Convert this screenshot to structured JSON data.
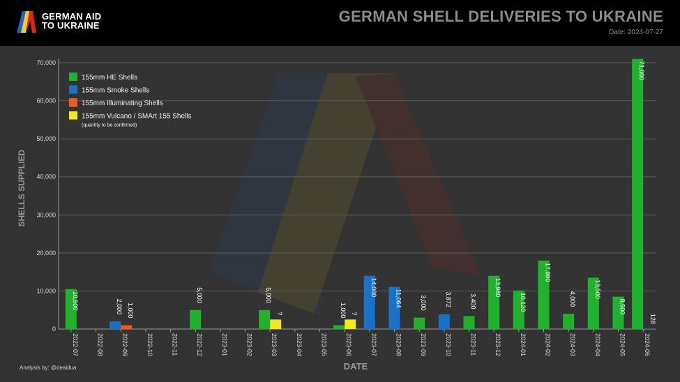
{
  "header": {
    "logo_line1": "GERMAN AID",
    "logo_line2": "TO UKRAINE",
    "title": "GERMAN SHELL DELIVERIES TO UKRAINE",
    "date": "Date: 2024-07-27"
  },
  "footer": {
    "credit": "Analysis by: @deaidua"
  },
  "colors": {
    "he": "#22b12e",
    "smoke": "#1a72c7",
    "illum": "#ef5a24",
    "vulcano": "#f4e81a",
    "grid": "#6a6a6a",
    "background": "#333333",
    "header": "#000000"
  },
  "chart_data": {
    "type": "bar",
    "xlabel": "DATE",
    "ylabel": "SHELLS SUPPLIED",
    "ylim": [
      0,
      70000
    ],
    "yticks": [
      "0",
      "10,000",
      "20,000",
      "30,000",
      "40,000",
      "50,000",
      "60,000",
      "70,000"
    ],
    "grid": true,
    "legend_position": "top-left",
    "legend_note": "(quantity to be confirmed)",
    "categories": [
      "2022-07",
      "2022-08",
      "2022-09",
      "2022-10",
      "2022-11",
      "2022-12",
      "2023-01",
      "2023-02",
      "2023-03",
      "2023-04",
      "2023-05",
      "2023-06",
      "2023-07",
      "2023-08",
      "2023-09",
      "2023-10",
      "2023-11",
      "2023-12",
      "2024-01",
      "2024-02",
      "2024-03",
      "2024-04",
      "2024-05",
      "2024-06"
    ],
    "series": [
      {
        "key": "he",
        "name": "155mm HE Shells",
        "color": "#22b12e",
        "values": [
          10500,
          0,
          0,
          0,
          0,
          5000,
          0,
          0,
          5000,
          0,
          0,
          1000,
          0,
          0,
          3000,
          0,
          3400,
          13980,
          10120,
          17990,
          4000,
          13500,
          8500,
          71000
        ],
        "labels": [
          "10,500",
          "",
          "",
          "",
          "",
          "5,000",
          "",
          "",
          "5,000",
          "",
          "",
          "1,000",
          "",
          "",
          "3,000",
          "",
          "3,400",
          "13,980",
          "10,120",
          "17,990",
          "4,000",
          "13,500",
          "8,500",
          "71,000"
        ]
      },
      {
        "key": "smoke",
        "name": "155mm Smoke Shells",
        "color": "#1a72c7",
        "values": [
          0,
          0,
          2000,
          0,
          0,
          0,
          0,
          0,
          0,
          0,
          0,
          0,
          14000,
          11064,
          0,
          3872,
          0,
          0,
          0,
          0,
          0,
          0,
          0,
          128
        ],
        "labels": [
          "",
          "",
          "2,000",
          "",
          "",
          "",
          "",
          "",
          "",
          "",
          "",
          "",
          "14,000",
          "11,064",
          "",
          "3,872",
          "",
          "",
          "",
          "",
          "",
          "",
          "",
          "128"
        ]
      },
      {
        "key": "illum",
        "name": "155mm Illuminating Shells",
        "color": "#ef5a24",
        "values": [
          0,
          0,
          1000,
          0,
          0,
          0,
          0,
          0,
          0,
          0,
          0,
          0,
          0,
          0,
          0,
          0,
          0,
          0,
          0,
          0,
          0,
          0,
          0,
          0
        ],
        "labels": [
          "",
          "",
          "1,000",
          "",
          "",
          "",
          "",
          "",
          "",
          "",
          "",
          "",
          "",
          "",
          "",
          "",
          "",
          "",
          "",
          "",
          "",
          "",
          "",
          ""
        ]
      },
      {
        "key": "vulcano",
        "name": "155mm Vulcano / SMArt 155 Shells",
        "color": "#f4e81a",
        "values": [
          0,
          0,
          0,
          0,
          0,
          0,
          0,
          0,
          2500,
          0,
          0,
          2500,
          0,
          0,
          0,
          0,
          0,
          0,
          0,
          0,
          0,
          0,
          0,
          0
        ],
        "labels": [
          "",
          "",
          "",
          "",
          "",
          "",
          "",
          "",
          "?",
          "",
          "",
          "?",
          "",
          "",
          "",
          "",
          "",
          "",
          "",
          "",
          "",
          "",
          "",
          ""
        ]
      }
    ]
  }
}
